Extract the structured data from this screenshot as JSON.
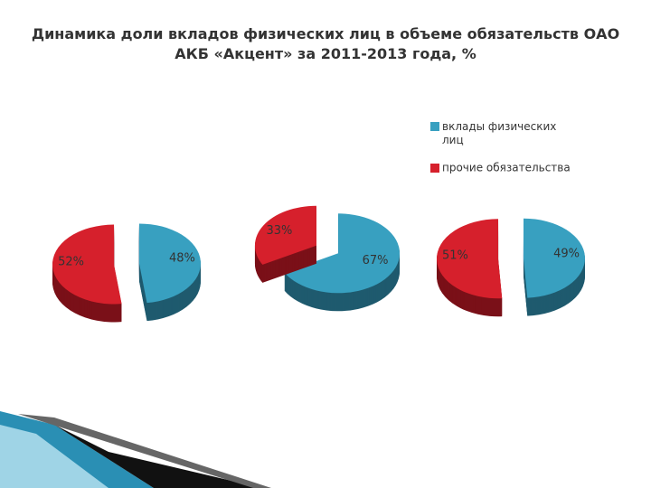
{
  "title": "Динамика доли вкладов физических лиц в объеме обязательств ОАО АКБ «Акцент» за 2011-2013 года, %",
  "categories": [
    "вклады физических лиц",
    "прочие обязательства"
  ],
  "colors": [
    "#38a0c0",
    "#d6202c"
  ],
  "side_colors": [
    "#1f5a6e",
    "#7a1018"
  ],
  "chart_data": [
    {
      "type": "pie",
      "values": [
        48,
        52
      ],
      "value_labels": [
        "48%",
        "52%"
      ]
    },
    {
      "type": "pie",
      "values": [
        67,
        33
      ],
      "value_labels": [
        "67%",
        "33%"
      ]
    },
    {
      "type": "pie",
      "values": [
        49,
        51
      ],
      "value_labels": [
        "49%",
        "51%"
      ]
    }
  ]
}
